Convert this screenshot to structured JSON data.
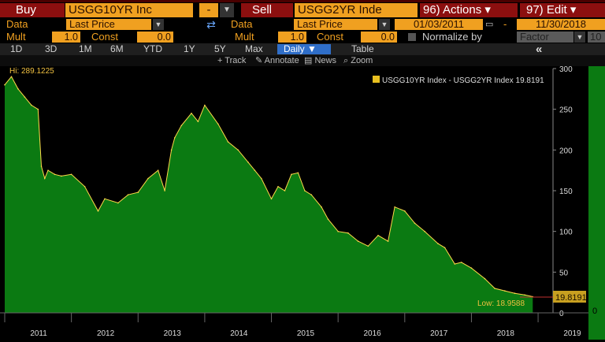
{
  "toolbar": {
    "buy_label": "Buy",
    "buy_security": "USGG10YR Inc",
    "spread_op": "-",
    "sell_label": "Sell",
    "sell_security": "USGG2YR Inde",
    "actions": "96) Actions ▾",
    "edit": "97) Edit ▾"
  },
  "row_data": {
    "data_label": "Data",
    "left_price": "Last Price",
    "right_price": "Last Price",
    "start_date": "01/03/2011",
    "date_sep": "-",
    "end_date": "11/30/2018"
  },
  "row_mult": {
    "mult_label": "Mult",
    "const_label": "Const",
    "left_mult": "1.0",
    "left_const": "0.0",
    "right_mult": "1.0",
    "right_const": "0.0",
    "normalize_label": "Normalize by",
    "normalize_value": "Factor",
    "factor_value": "10"
  },
  "periods": [
    "1D",
    "3D",
    "1M",
    "6M",
    "YTD",
    "1Y",
    "5Y",
    "Max"
  ],
  "frequency": "Daily ▼",
  "table_label": "Table",
  "collapse_icon": "«",
  "chart_tools": [
    "Track",
    "Annotate",
    "News",
    "Zoom"
  ],
  "colors": {
    "fill": "#0b7a12",
    "line": "#ffd84a",
    "accent": "#f0a020",
    "header_red": "#8c0f0f"
  },
  "chart_data": {
    "type": "area",
    "legend": "USGG10YR Index - USGG2YR Index 19.8191",
    "last_value_label": "19.8191",
    "hi_label": "Hi: 289.1225",
    "low_label": "Low: 18.9588",
    "ylim": [
      0,
      300
    ],
    "yticks": [
      0,
      50,
      100,
      150,
      200,
      250,
      300
    ],
    "xticks": [
      "2011",
      "2012",
      "2013",
      "2014",
      "2015",
      "2016",
      "2017",
      "2018",
      "2019"
    ],
    "x": [
      2011.0,
      2011.1,
      2011.2,
      2011.3,
      2011.4,
      2011.5,
      2011.55,
      2011.6,
      2011.65,
      2011.75,
      2011.85,
      2012.0,
      2012.2,
      2012.4,
      2012.5,
      2012.7,
      2012.85,
      2013.0,
      2013.15,
      2013.3,
      2013.4,
      2013.5,
      2013.55,
      2013.65,
      2013.8,
      2013.9,
      2014.0,
      2014.2,
      2014.35,
      2014.5,
      2014.65,
      2014.75,
      2014.85,
      2015.0,
      2015.1,
      2015.2,
      2015.3,
      2015.4,
      2015.5,
      2015.6,
      2015.75,
      2015.85,
      2016.0,
      2016.15,
      2016.3,
      2016.45,
      2016.6,
      2016.75,
      2016.85,
      2017.0,
      2017.15,
      2017.3,
      2017.5,
      2017.6,
      2017.75,
      2017.85,
      2018.0,
      2018.2,
      2018.35,
      2018.5,
      2018.65,
      2018.8,
      2018.92
    ],
    "y": [
      280,
      290,
      275,
      265,
      255,
      250,
      180,
      165,
      175,
      170,
      168,
      170,
      155,
      125,
      140,
      135,
      145,
      148,
      165,
      175,
      150,
      200,
      215,
      230,
      245,
      235,
      255,
      232,
      210,
      200,
      185,
      175,
      165,
      140,
      155,
      150,
      170,
      172,
      150,
      145,
      130,
      115,
      100,
      98,
      88,
      82,
      95,
      88,
      130,
      125,
      110,
      100,
      85,
      80,
      60,
      62,
      55,
      42,
      30,
      27,
      24,
      22,
      19.8
    ]
  }
}
